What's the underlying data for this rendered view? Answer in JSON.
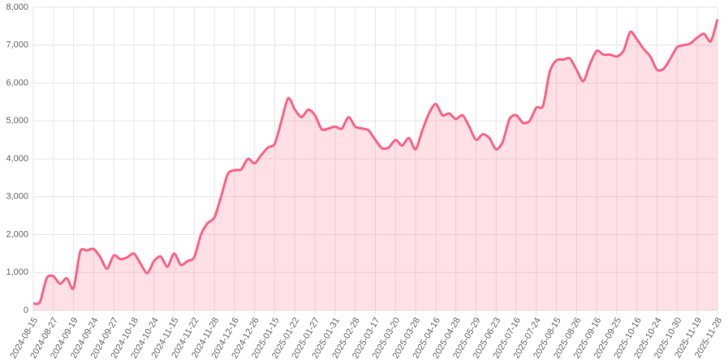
{
  "chart_data": {
    "type": "line",
    "categories": [
      "2024-08-15",
      null,
      null,
      "2024-08-27",
      null,
      null,
      "2024-09-19",
      null,
      null,
      "2024-09-24",
      null,
      null,
      "2024-09-27",
      null,
      null,
      "2024-10-18",
      null,
      null,
      "2024-10-24",
      null,
      null,
      "2024-11-15",
      null,
      null,
      "2024-11-22",
      null,
      null,
      "2024-11-28",
      null,
      null,
      "2024-12-16",
      null,
      null,
      "2024-12-26",
      null,
      null,
      "2025-01-15",
      null,
      null,
      "2025-01-22",
      null,
      null,
      "2025-01-27",
      null,
      null,
      "2025-01-31",
      null,
      null,
      "2025-02-28",
      null,
      null,
      "2025-03-17",
      null,
      null,
      "2025-03-20",
      null,
      null,
      "2025-03-28",
      null,
      null,
      "2025-04-16",
      null,
      null,
      "2025-04-28",
      null,
      null,
      "2025-05-29",
      null,
      null,
      "2025-06-23",
      null,
      null,
      "2025-07-16",
      null,
      null,
      "2025-07-24",
      null,
      null,
      "2025-08-15",
      null,
      null,
      "2025-08-26",
      null,
      null,
      "2025-09-16",
      null,
      null,
      "2025-09-25",
      null,
      null,
      "2025-10-16",
      null,
      null,
      "2025-10-24",
      null,
      null,
      "2025-10-30",
      null,
      null,
      "2025-11-19",
      null,
      null,
      "2025-11-28"
    ],
    "series": [
      {
        "color": "#ff6384",
        "fill": "rgba(255,99,132,0.2)",
        "values": [
          180,
          220,
          850,
          900,
          700,
          850,
          580,
          1550,
          1580,
          1620,
          1400,
          1100,
          1450,
          1350,
          1400,
          1500,
          1230,
          980,
          1300,
          1420,
          1150,
          1500,
          1200,
          1300,
          1400,
          2000,
          2300,
          2450,
          3000,
          3600,
          3700,
          3720,
          4000,
          3880,
          4100,
          4300,
          4400,
          5000,
          5600,
          5300,
          5100,
          5300,
          5150,
          4780,
          4800,
          4850,
          4800,
          5100,
          4850,
          4800,
          4750,
          4500,
          4280,
          4300,
          4500,
          4350,
          4550,
          4250,
          4750,
          5200,
          5450,
          5150,
          5200,
          5050,
          5150,
          4850,
          4500,
          4650,
          4550,
          4250,
          4450,
          5050,
          5150,
          4950,
          5000,
          5350,
          5400,
          6300,
          6600,
          6620,
          6650,
          6350,
          6050,
          6500,
          6850,
          6750,
          6750,
          6700,
          6850,
          7350,
          7150,
          6900,
          6700,
          6350,
          6380,
          6650,
          6950,
          7000,
          7050,
          7200,
          7300,
          7100,
          7680
        ]
      }
    ],
    "ylim": [
      0,
      8000
    ],
    "yticks": [
      0,
      {
        "value": 1000,
        "label": "1,000"
      },
      {
        "value": 2000,
        "label": "2,000"
      },
      {
        "value": 3000,
        "label": "3,000"
      },
      {
        "value": 4000,
        "label": "4,000"
      },
      {
        "value": 5000,
        "label": "5,000"
      },
      {
        "value": 6000,
        "label": "6,000"
      },
      {
        "value": 7000,
        "label": "7,000"
      },
      {
        "value": 8000,
        "label": "8,000"
      }
    ],
    "grid": true
  }
}
